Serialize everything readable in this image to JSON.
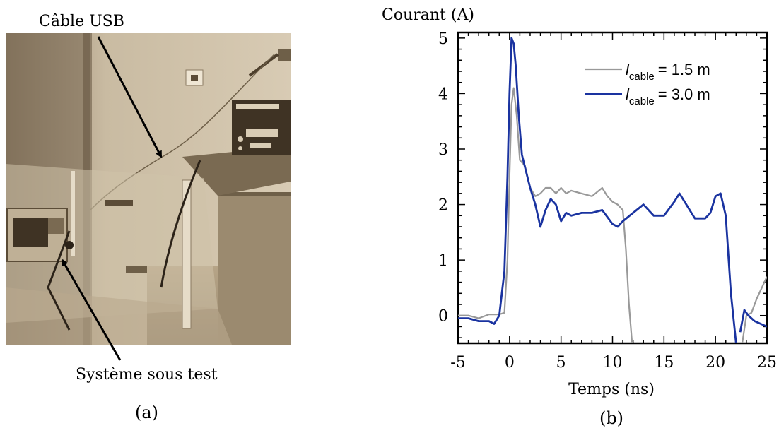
{
  "panel_a": {
    "label_top": "Câble USB",
    "label_bottom": "Système sous test",
    "caption": "(a)",
    "palette": {
      "sepia_light": "#d8cbb4",
      "sepia_mid": "#b3a184",
      "sepia_dark": "#4d3f2c"
    }
  },
  "panel_b": {
    "caption": "(b)"
  },
  "chart_data": {
    "type": "line",
    "title": "",
    "ylabel": "Courant (A)",
    "xlabel": "Temps (ns)",
    "xlim": [
      -5,
      25
    ],
    "ylim": [
      -0.5,
      5.1
    ],
    "xticks": [
      -5,
      0,
      5,
      10,
      15,
      20,
      25
    ],
    "yticks": [
      0,
      1,
      2,
      3,
      4,
      5
    ],
    "grid": false,
    "legend": "top-right",
    "series": [
      {
        "legend_prefix": "l",
        "legend_sub": "cable",
        "legend_value": "= 1.5 m",
        "color": "#999999",
        "x": [
          -5,
          -4,
          -3,
          -2,
          -1,
          -0.5,
          -0.2,
          0,
          0.2,
          0.4,
          0.7,
          1,
          1.5,
          2,
          2.5,
          3,
          3.5,
          4,
          4.5,
          5,
          5.5,
          6,
          7,
          8,
          9,
          9.5,
          10,
          10.5,
          11,
          11.3,
          11.6,
          11.9
        ],
        "y": [
          0,
          0,
          -0.05,
          0.02,
          0.02,
          0.05,
          1.0,
          2.5,
          3.8,
          4.1,
          3.6,
          2.8,
          2.7,
          2.3,
          2.15,
          2.2,
          2.3,
          2.3,
          2.2,
          2.3,
          2.2,
          2.25,
          2.2,
          2.15,
          2.3,
          2.15,
          2.05,
          2.0,
          1.9,
          1.2,
          0.2,
          -0.5
        ]
      },
      {
        "legend_prefix": "l",
        "legend_sub": "cable",
        "legend_value": "= 3.0 m",
        "color": "#1a33a0",
        "x": [
          -5,
          -4,
          -3,
          -2,
          -1.5,
          -1,
          -0.5,
          -0.2,
          0,
          0.2,
          0.4,
          0.6,
          0.9,
          1.2,
          1.6,
          2,
          2.5,
          3,
          3.5,
          4,
          4.5,
          5,
          5.5,
          6,
          7,
          8,
          9,
          10,
          10.5,
          11,
          12,
          13,
          14,
          15,
          16,
          16.5,
          17,
          18,
          19,
          19.5,
          20,
          20.5,
          21,
          21.5,
          22
        ],
        "y": [
          -0.05,
          -0.05,
          -0.1,
          -0.1,
          -0.15,
          0.0,
          0.8,
          2.5,
          4.0,
          5.0,
          4.9,
          4.5,
          3.6,
          2.9,
          2.6,
          2.3,
          2.0,
          1.6,
          1.9,
          2.1,
          2.0,
          1.7,
          1.85,
          1.8,
          1.85,
          1.85,
          1.9,
          1.65,
          1.6,
          1.7,
          1.85,
          2.0,
          1.8,
          1.8,
          2.05,
          2.2,
          2.05,
          1.75,
          1.75,
          1.85,
          2.15,
          2.2,
          1.8,
          0.4,
          -0.5
        ]
      },
      {
        "color": "#999999",
        "x": [
          22.6,
          23,
          23.5,
          24,
          24.5,
          25
        ],
        "y": [
          -0.5,
          0.0,
          0.05,
          0.3,
          0.5,
          0.7
        ]
      },
      {
        "color": "#1a33a0",
        "x": [
          22.4,
          22.8,
          23.2,
          23.8,
          24.4,
          25
        ],
        "y": [
          -0.3,
          0.1,
          0.0,
          -0.1,
          -0.15,
          -0.2
        ]
      }
    ]
  }
}
